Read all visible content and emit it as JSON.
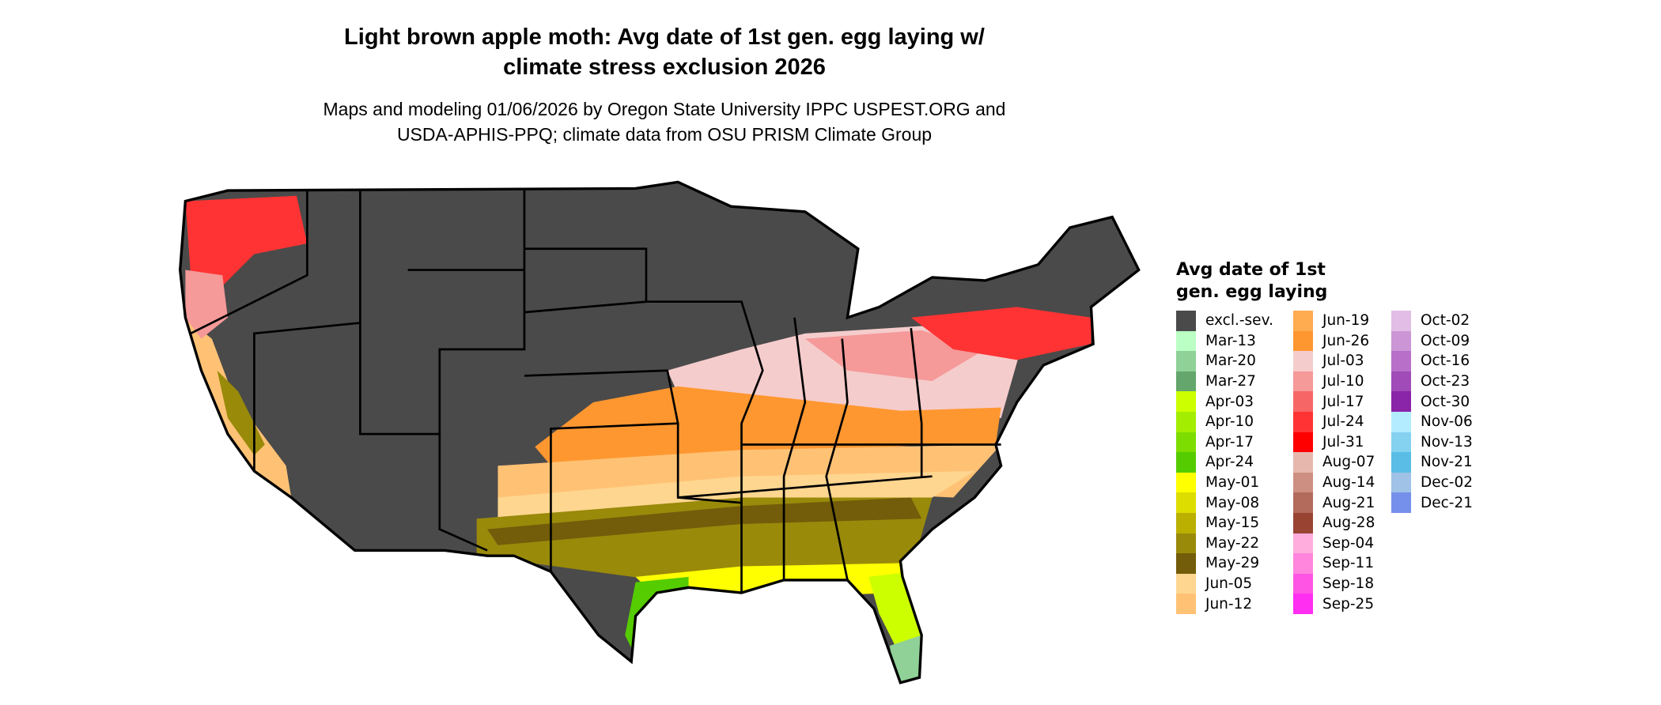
{
  "title": "Light brown apple moth: Avg date of 1st gen. egg laying w/ climate stress exclusion 2026",
  "title_line1": "Light brown apple moth: Avg date of 1st gen. egg laying w/",
  "title_line2": "climate stress exclusion 2026",
  "subtitle_line1": "Maps and modeling 01/06/2026 by Oregon State University IPPC USPEST.ORG and",
  "subtitle_line2": "USDA-APHIS-PPQ; climate data from OSU PRISM Climate Group",
  "legend": {
    "title_line1": "Avg date of 1st",
    "title_line2": "gen. egg laying",
    "columns": [
      [
        {
          "label": "excl.-sev.",
          "color": "#4a4a4a"
        },
        {
          "label": "Mar-13",
          "color": "#bbffc4"
        },
        {
          "label": "Mar-20",
          "color": "#8fd196"
        },
        {
          "label": "Mar-27",
          "color": "#64a66b"
        },
        {
          "label": "Apr-03",
          "color": "#ccff00"
        },
        {
          "label": "Apr-10",
          "color": "#a3ee00"
        },
        {
          "label": "Apr-17",
          "color": "#7ddd00"
        },
        {
          "label": "Apr-24",
          "color": "#55cc00"
        },
        {
          "label": "May-01",
          "color": "#ffff00"
        },
        {
          "label": "May-08",
          "color": "#dddd00"
        },
        {
          "label": "May-15",
          "color": "#bbaf00"
        },
        {
          "label": "May-22",
          "color": "#998a0a"
        },
        {
          "label": "May-29",
          "color": "#735c0a"
        },
        {
          "label": "Jun-05",
          "color": "#ffd690"
        },
        {
          "label": "Jun-12",
          "color": "#ffc275"
        }
      ],
      [
        {
          "label": "Jun-19",
          "color": "#ffab50"
        },
        {
          "label": "Jun-26",
          "color": "#ff9730"
        },
        {
          "label": "Jul-03",
          "color": "#f5cccc"
        },
        {
          "label": "Jul-10",
          "color": "#f59999"
        },
        {
          "label": "Jul-17",
          "color": "#f76666"
        },
        {
          "label": "Jul-24",
          "color": "#ff3333"
        },
        {
          "label": "Jul-31",
          "color": "#ff0000"
        },
        {
          "label": "Aug-07",
          "color": "#e6b8ad"
        },
        {
          "label": "Aug-14",
          "color": "#cc8f82"
        },
        {
          "label": "Aug-21",
          "color": "#b36b5c"
        },
        {
          "label": "Aug-28",
          "color": "#994433"
        },
        {
          "label": "Sep-04",
          "color": "#ffaddd"
        },
        {
          "label": "Sep-11",
          "color": "#ff85dd"
        },
        {
          "label": "Sep-18",
          "color": "#ff55e5"
        },
        {
          "label": "Sep-25",
          "color": "#ff2ef0"
        }
      ],
      [
        {
          "label": "Oct-02",
          "color": "#e2bde6"
        },
        {
          "label": "Oct-09",
          "color": "#cc96d6"
        },
        {
          "label": "Oct-16",
          "color": "#b86fc9"
        },
        {
          "label": "Oct-23",
          "color": "#a04bb8"
        },
        {
          "label": "Oct-30",
          "color": "#8a24a8"
        },
        {
          "label": "Nov-06",
          "color": "#b3ecff"
        },
        {
          "label": "Nov-13",
          "color": "#85d1f0"
        },
        {
          "label": "Nov-21",
          "color": "#5abde6"
        },
        {
          "label": "Dec-02",
          "color": "#9fc2e6"
        },
        {
          "label": "Dec-21",
          "color": "#7590eb"
        }
      ]
    ]
  }
}
